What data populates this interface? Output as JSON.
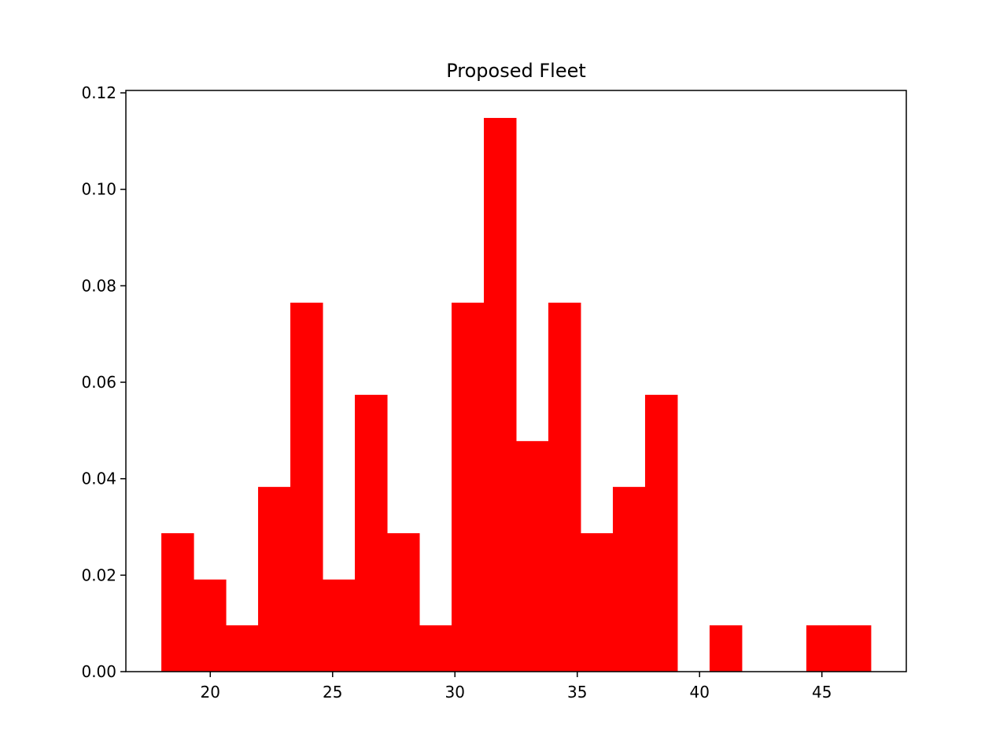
{
  "chart_data": {
    "type": "bar",
    "subtype": "histogram",
    "title": "Proposed Fleet",
    "xlabel": "",
    "ylabel": "",
    "bin_edges": [
      18,
      19.3182,
      20.6364,
      21.9545,
      23.2727,
      24.5909,
      25.9091,
      27.2273,
      28.5455,
      29.8636,
      31.1818,
      32.5,
      33.8182,
      35.1364,
      36.4545,
      37.7727,
      39.0909,
      40.4091,
      41.7273,
      43.0455,
      44.3636,
      45.6818,
      47
    ],
    "values": [
      0.0287,
      0.0191,
      0.0096,
      0.0383,
      0.0765,
      0.0191,
      0.0574,
      0.0287,
      0.0096,
      0.0765,
      0.1148,
      0.0478,
      0.0765,
      0.0287,
      0.0383,
      0.0574,
      0,
      0.0096,
      0,
      0,
      0.0096,
      0.0096
    ],
    "xlim": [
      16.55,
      48.45
    ],
    "ylim": [
      0,
      0.1205
    ],
    "xticks": [
      "20",
      "25",
      "30",
      "35",
      "40",
      "45"
    ],
    "xtick_values": [
      20,
      25,
      30,
      35,
      40,
      45
    ],
    "yticks": [
      "0.00",
      "0.02",
      "0.04",
      "0.06",
      "0.08",
      "0.10",
      "0.12"
    ],
    "ytick_values": [
      0,
      0.02,
      0.04,
      0.06,
      0.08,
      0.1,
      0.12
    ],
    "bar_color": "#ff0000",
    "grid": false,
    "legend": "none"
  }
}
